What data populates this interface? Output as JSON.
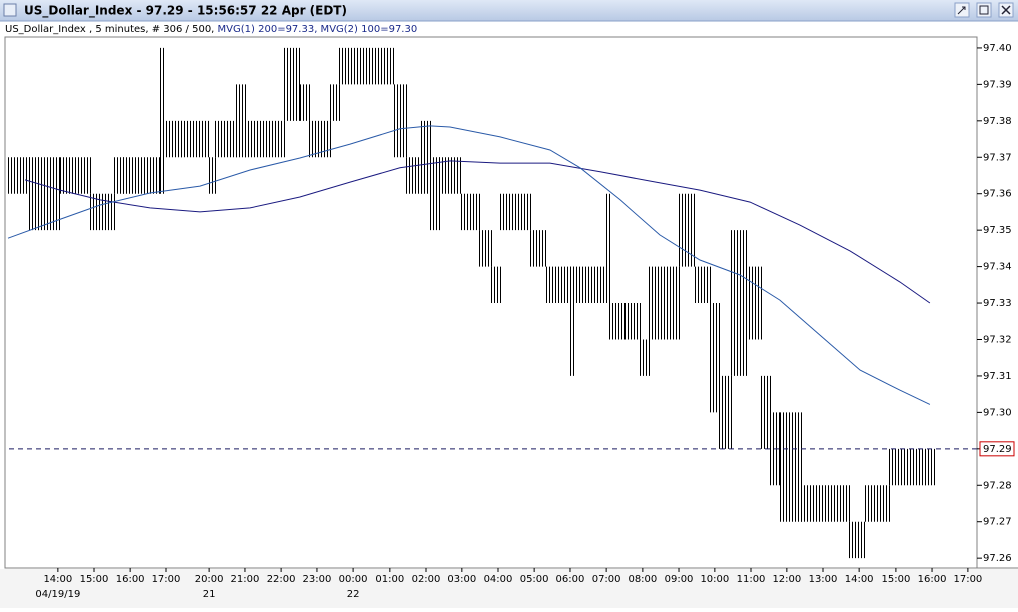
{
  "window_title": "US_Dollar_Index - 97.29 - 15:56:57  22 Apr (EDT)",
  "chart_data": {
    "type": "range_bars",
    "info": "US_Dollar_Index , 5 minutes, # 306 / 500, ",
    "ma_info": "MVG(1) 200=97.33, MVG(2) 100=97.30",
    "ma_info_color": "#1a2a8a",
    "bar_color": "#000000",
    "xlim": [
      0,
      320
    ],
    "ylim": [
      97.2573,
      97.403
    ],
    "xticks": [
      {
        "value": 17.4,
        "label": "14:00"
      },
      {
        "value": 29.3,
        "label": "15:00"
      },
      {
        "value": 41.2,
        "label": "16:00"
      },
      {
        "value": 53.0,
        "label": "17:00"
      },
      {
        "value": 67.2,
        "label": "20:00"
      },
      {
        "value": 79.0,
        "label": "21:00"
      },
      {
        "value": 90.9,
        "label": "22:00"
      },
      {
        "value": 102.7,
        "label": "23:00"
      },
      {
        "value": 114.6,
        "label": "00:00"
      },
      {
        "value": 126.7,
        "label": "01:00"
      },
      {
        "value": 138.6,
        "label": "02:00"
      },
      {
        "value": 150.4,
        "label": "03:00"
      },
      {
        "value": 162.3,
        "label": "04:00"
      },
      {
        "value": 174.2,
        "label": "05:00"
      },
      {
        "value": 186.0,
        "label": "06:00"
      },
      {
        "value": 197.9,
        "label": "07:00"
      },
      {
        "value": 210.0,
        "label": "08:00"
      },
      {
        "value": 221.9,
        "label": "09:00"
      },
      {
        "value": 233.7,
        "label": "10:00"
      },
      {
        "value": 245.6,
        "label": "11:00"
      },
      {
        "value": 257.4,
        "label": "12:00"
      },
      {
        "value": 269.3,
        "label": "13:00"
      },
      {
        "value": 281.2,
        "label": "14:00"
      },
      {
        "value": 293.3,
        "label": "15:00"
      },
      {
        "value": 305.2,
        "label": "16:00"
      },
      {
        "value": 317.0,
        "label": "17:00"
      }
    ],
    "date_ticks": [
      {
        "value": 17.4,
        "label": "04/19/19"
      },
      {
        "value": 67.2,
        "label": "21"
      },
      {
        "value": 114.6,
        "label": "22"
      }
    ],
    "yticks": [
      {
        "value": 97.26,
        "label": "97.26"
      },
      {
        "value": 97.27,
        "label": "97.27"
      },
      {
        "value": 97.28,
        "label": "97.28"
      },
      {
        "value": 97.29,
        "label": "97.29"
      },
      {
        "value": 97.3,
        "label": "97.30"
      },
      {
        "value": 97.31,
        "label": "97.31"
      },
      {
        "value": 97.32,
        "label": "97.32"
      },
      {
        "value": 97.33,
        "label": "97.33"
      },
      {
        "value": 97.34,
        "label": "97.34"
      },
      {
        "value": 97.35,
        "label": "97.35"
      },
      {
        "value": 97.36,
        "label": "97.36"
      },
      {
        "value": 97.37,
        "label": "97.37"
      },
      {
        "value": 97.38,
        "label": "97.38"
      },
      {
        "value": 97.39,
        "label": "97.39"
      },
      {
        "value": 97.4,
        "label": "97.40"
      }
    ],
    "bars": {
      "x_start": [
        1,
        8,
        11,
        18,
        28,
        36,
        39,
        51,
        52,
        58,
        67,
        69,
        76,
        79,
        92,
        97,
        100,
        107,
        110,
        128,
        132,
        137,
        140,
        143,
        150,
        156,
        160,
        163,
        173,
        178,
        186,
        187,
        198,
        199,
        204,
        209,
        212,
        222,
        227,
        232,
        235,
        239,
        244,
        249,
        252,
        255,
        262,
        278,
        283,
        291,
        303
      ],
      "x_end": [
        8,
        11,
        18,
        28,
        36,
        39,
        51,
        52,
        58,
        67,
        69,
        76,
        79,
        92,
        97,
        100,
        107,
        110,
        128,
        132,
        137,
        140,
        143,
        150,
        156,
        160,
        163,
        173,
        178,
        186,
        187,
        198,
        199,
        204,
        209,
        212,
        222,
        227,
        232,
        235,
        239,
        244,
        249,
        252,
        255,
        262,
        278,
        283,
        291,
        303,
        306
      ],
      "low": [
        97.36,
        97.35,
        97.35,
        97.36,
        97.35,
        97.36,
        97.36,
        97.36,
        97.37,
        97.37,
        97.36,
        97.37,
        97.37,
        97.37,
        97.38,
        97.38,
        97.37,
        97.38,
        97.39,
        97.37,
        97.36,
        97.36,
        97.35,
        97.36,
        97.35,
        97.34,
        97.33,
        97.35,
        97.34,
        97.33,
        97.31,
        97.33,
        97.33,
        97.32,
        97.32,
        97.31,
        97.32,
        97.34,
        97.33,
        97.3,
        97.29,
        97.31,
        97.32,
        97.29,
        97.28,
        97.27,
        97.27,
        97.26,
        97.27,
        97.28,
        97.28
      ],
      "high": [
        97.37,
        97.37,
        97.37,
        97.37,
        97.36,
        97.37,
        97.37,
        97.4,
        97.38,
        97.38,
        97.37,
        97.38,
        97.39,
        97.38,
        97.4,
        97.39,
        97.38,
        97.39,
        97.4,
        97.39,
        97.37,
        97.38,
        97.37,
        97.37,
        97.36,
        97.35,
        97.34,
        97.36,
        97.35,
        97.34,
        97.34,
        97.34,
        97.36,
        97.33,
        97.33,
        97.32,
        97.34,
        97.36,
        97.34,
        97.33,
        97.31,
        97.35,
        97.34,
        97.31,
        97.3,
        97.3,
        97.28,
        97.27,
        97.28,
        97.29,
        97.29
      ]
    },
    "series": [
      {
        "color": "#1a1a80",
        "x": [
          6.6,
          18.1,
          31.3,
          47.7,
          64.2,
          80.7,
          97.1,
          113.6,
          130,
          146.5,
          163,
          179.4,
          195.9,
          212.3,
          228.8,
          245.3,
          261.7,
          278.2,
          294.6,
          304.5
        ],
        "values": [
          97.3638,
          97.361,
          97.3583,
          97.3561,
          97.355,
          97.3561,
          97.3591,
          97.3632,
          97.3671,
          97.369,
          97.3684,
          97.3684,
          97.366,
          97.3635,
          97.361,
          97.3577,
          97.3514,
          97.3443,
          97.3358,
          97.33
        ]
      },
      {
        "color": "#2a5aa8",
        "x": [
          1,
          14.8,
          31.3,
          47.7,
          64.2,
          80.7,
          97.1,
          113.6,
          130,
          139.9,
          146.5,
          163,
          179.4,
          189.3,
          202.5,
          215.6,
          228.8,
          242,
          255.1,
          268.3,
          281.5,
          294.6,
          304.5
        ],
        "values": [
          97.3478,
          97.352,
          97.3569,
          97.3602,
          97.3621,
          97.3665,
          97.3698,
          97.3736,
          97.3778,
          97.3786,
          97.3783,
          97.3756,
          97.372,
          97.3671,
          97.3583,
          97.3487,
          97.3418,
          97.3377,
          97.3308,
          97.3212,
          97.3116,
          97.3061,
          97.3022
        ]
      }
    ],
    "last_price": 97.29,
    "last_price_color": "#cc0000",
    "last_line_color": "#1a1a60"
  }
}
